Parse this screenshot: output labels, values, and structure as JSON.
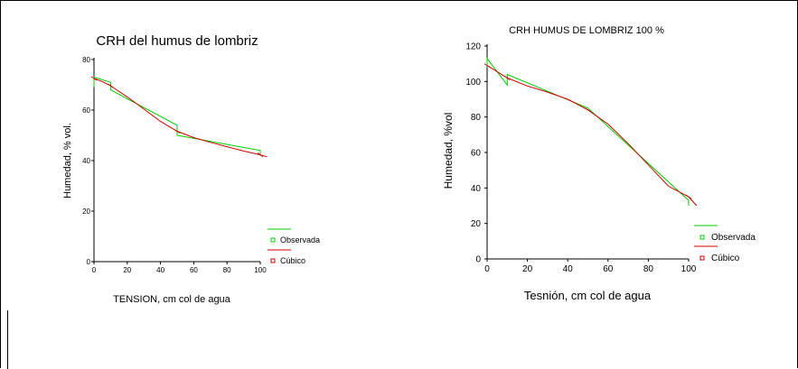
{
  "chart_data": [
    {
      "type": "line",
      "title": "CRH del humus de lombriz",
      "xlabel": "TENSION, cm col de agua",
      "ylabel": "Humedad, % vol.",
      "xlim": [
        0,
        100
      ],
      "ylim": [
        0,
        80
      ],
      "xticks": [
        "0",
        "20",
        "40",
        "60",
        "80",
        "100"
      ],
      "yticks": [
        "0",
        "20",
        "40",
        "60",
        "80"
      ],
      "series": [
        {
          "name": "Observada",
          "color": "#00cc00",
          "x": [
            0,
            0,
            10,
            10,
            50,
            50,
            100,
            100
          ],
          "y": [
            69,
            73,
            71,
            68,
            54,
            50,
            44,
            42
          ]
        },
        {
          "name": "Cúbico",
          "color": "#cc0000",
          "x": [
            0,
            5,
            10,
            20,
            30,
            40,
            50,
            60,
            70,
            80,
            90,
            100,
            104
          ],
          "y": [
            72.5,
            71.3,
            69.6,
            65.2,
            60.4,
            55.5,
            51.6,
            49.1,
            47.2,
            45.5,
            43.8,
            42.3,
            41.5
          ]
        }
      ],
      "legend": "bottom-right"
    },
    {
      "type": "line",
      "title": "CRH HUMUS DE LOMBRIZ 100 %",
      "xlabel": "Tesnión, cm col de agua",
      "ylabel": "Humedad, %vol",
      "xlim": [
        0,
        100
      ],
      "ylim": [
        0,
        120
      ],
      "xticks": [
        "0",
        "20",
        "40",
        "60",
        "80",
        "100"
      ],
      "yticks": [
        "0",
        "20",
        "40",
        "60",
        "80",
        "100",
        "120"
      ],
      "series": [
        {
          "name": "Observada",
          "color": "#00cc00",
          "x": [
            0,
            0,
            10,
            10,
            50,
            100,
            100
          ],
          "y": [
            108,
            113,
            98,
            104,
            85,
            33,
            30
          ]
        },
        {
          "name": "Cúbico",
          "color": "#cc0000",
          "x": [
            0,
            10,
            20,
            30,
            40,
            50,
            60,
            70,
            80,
            90,
            100,
            104
          ],
          "y": [
            109,
            102,
            97.5,
            94,
            90,
            84,
            76,
            65,
            53,
            41,
            35,
            30
          ]
        }
      ],
      "legend": "bottom-right"
    }
  ]
}
